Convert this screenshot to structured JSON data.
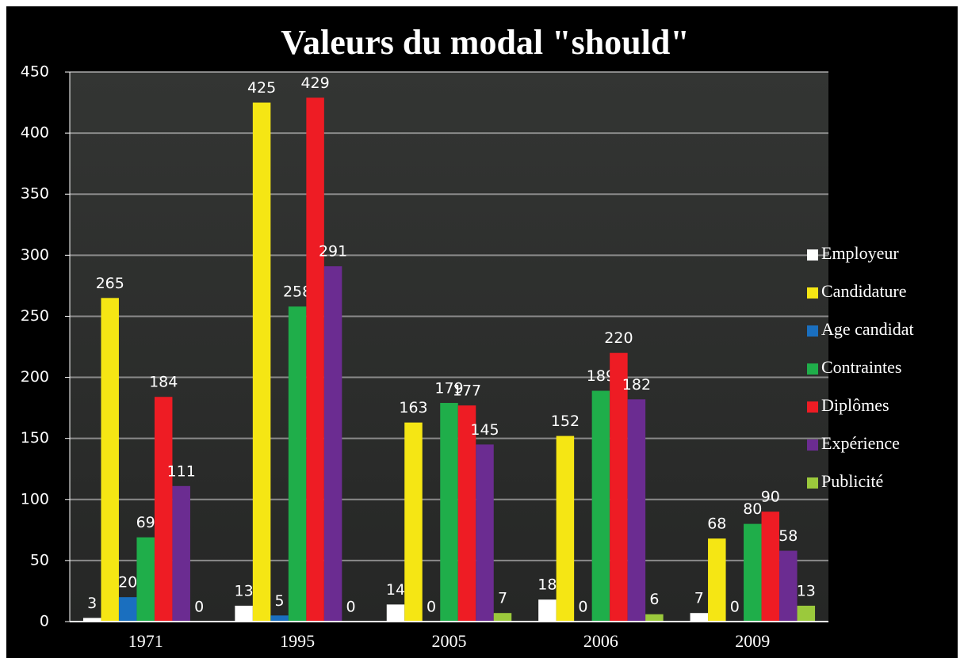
{
  "chart_data": {
    "type": "bar",
    "title": "Valeurs du modal \"should\"",
    "categories": [
      "1971",
      "1995",
      "2005",
      "2006",
      "2009"
    ],
    "series": [
      {
        "name": "Employeur",
        "color": "#ffffff",
        "values": [
          3,
          13,
          14,
          18,
          7
        ]
      },
      {
        "name": "Candidature",
        "color": "#f5e614",
        "values": [
          265,
          425,
          163,
          152,
          68
        ]
      },
      {
        "name": "Age candidat",
        "color": "#1a6fbf",
        "values": [
          20,
          5,
          0,
          0,
          0
        ]
      },
      {
        "name": "Contraintes",
        "color": "#1fae4a",
        "values": [
          69,
          258,
          179,
          189,
          80
        ]
      },
      {
        "name": "Diplômes",
        "color": "#ee1c24",
        "values": [
          184,
          429,
          177,
          220,
          90
        ]
      },
      {
        "name": "Expérience",
        "color": "#6b2c91",
        "values": [
          111,
          291,
          145,
          182,
          58
        ]
      },
      {
        "name": "Publicité",
        "color": "#9bc93c",
        "values": [
          0,
          0,
          7,
          6,
          13
        ]
      }
    ],
    "ylim": [
      0,
      450
    ],
    "yticks": [
      0,
      50,
      100,
      150,
      200,
      250,
      300,
      350,
      400,
      450
    ],
    "grid": true
  }
}
